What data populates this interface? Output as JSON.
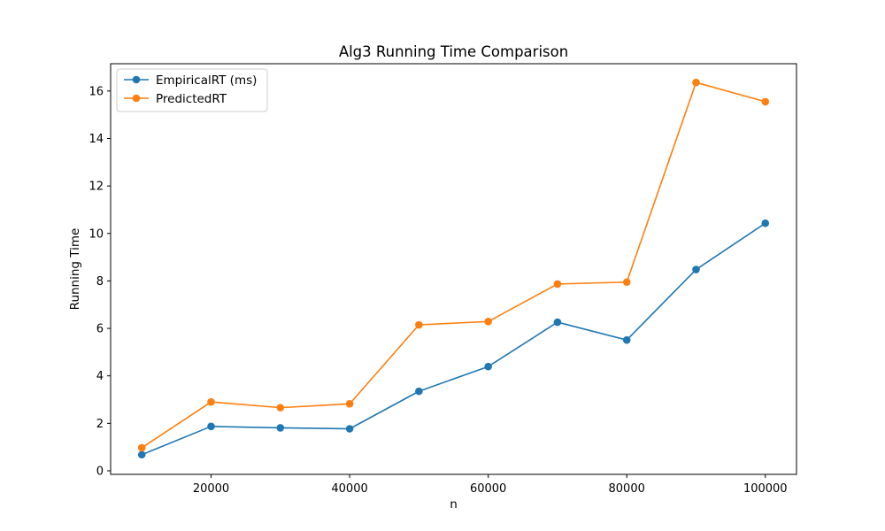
{
  "chart_data": {
    "type": "line",
    "title": "Alg3 Running Time Comparison",
    "xlabel": "n",
    "ylabel": "Running Time",
    "x": [
      10000,
      20000,
      30000,
      40000,
      50000,
      60000,
      70000,
      80000,
      90000,
      100000
    ],
    "series": [
      {
        "name": "EmpiricalRT (ms)",
        "color": "#1f77b4",
        "values": [
          0.68,
          1.87,
          1.81,
          1.77,
          3.35,
          4.39,
          6.26,
          5.51,
          8.48,
          10.43
        ]
      },
      {
        "name": "PredictedRT",
        "color": "#ff7f0e",
        "values": [
          0.97,
          2.9,
          2.66,
          2.82,
          6.15,
          6.29,
          7.87,
          7.95,
          16.36,
          15.55
        ]
      }
    ],
    "xlim": [
      5500,
      104500
    ],
    "ylim": [
      -0.15,
      17.15
    ],
    "xticks": [
      20000,
      40000,
      60000,
      80000,
      100000
    ],
    "xtick_labels": [
      "20000",
      "40000",
      "60000",
      "80000",
      "100000"
    ],
    "yticks": [
      0,
      2,
      4,
      6,
      8,
      10,
      12,
      14,
      16
    ],
    "ytick_labels": [
      "0",
      "2",
      "4",
      "6",
      "8",
      "10",
      "12",
      "14",
      "16"
    ],
    "grid": false,
    "legend_position": "top-left"
  }
}
